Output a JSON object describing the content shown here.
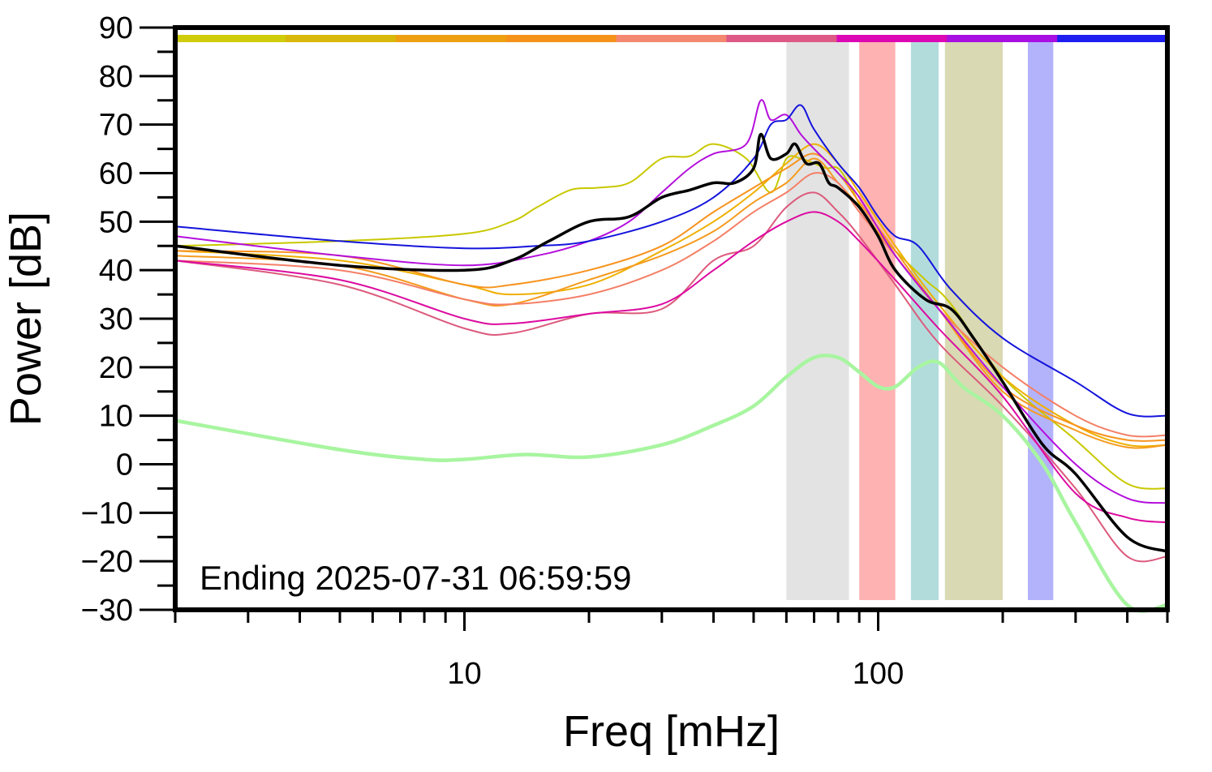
{
  "chart_data": {
    "type": "line",
    "xlabel": "Freq [mHz]",
    "ylabel": "Power [dB]",
    "xscale": "log",
    "xlim": [
      2,
      500
    ],
    "ylim": [
      -30,
      90
    ],
    "xticks": [
      10,
      100
    ],
    "yticks": [
      90,
      80,
      70,
      60,
      50,
      40,
      30,
      20,
      10,
      0,
      -10,
      -20,
      -30
    ],
    "grid": false,
    "annotation": "Ending 2025-07-31 06:59:59",
    "bands": [
      {
        "x": [
          60,
          85
        ],
        "color": "#e3e3e3"
      },
      {
        "x": [
          90,
          110
        ],
        "color": "#ffb2b2"
      },
      {
        "x": [
          120,
          140
        ],
        "color": "#b2dcdc"
      },
      {
        "x": [
          145,
          200
        ],
        "color": "#d9d9b3"
      },
      {
        "x": [
          230,
          265
        ],
        "color": "#b3b3fb"
      }
    ],
    "color_strip": [
      "#cfcc0a",
      "#d8b80a",
      "#eea012",
      "#f5921a",
      "#f48770",
      "#dc5a85",
      "#dc08b4",
      "#a80fe2",
      "#1e1ef0"
    ],
    "series": [
      {
        "color": "#c8c800",
        "width": 2,
        "points": [
          [
            2,
            45
          ],
          [
            5,
            46
          ],
          [
            10,
            47.5
          ],
          [
            13,
            50
          ],
          [
            15,
            53
          ],
          [
            18,
            56.5
          ],
          [
            21,
            57
          ],
          [
            25,
            58
          ],
          [
            30,
            63
          ],
          [
            35,
            63.5
          ],
          [
            40,
            66
          ],
          [
            48,
            63
          ],
          [
            55,
            56
          ],
          [
            60,
            63
          ],
          [
            65,
            63
          ],
          [
            70,
            62
          ],
          [
            75,
            61
          ],
          [
            80,
            61
          ],
          [
            86,
            57
          ],
          [
            95,
            50
          ],
          [
            110,
            44
          ],
          [
            130,
            38
          ],
          [
            150,
            33
          ],
          [
            200,
            18
          ],
          [
            300,
            5
          ],
          [
            400,
            -4
          ],
          [
            500,
            -5
          ]
        ]
      },
      {
        "color": "#eeb000",
        "width": 2,
        "points": [
          [
            2,
            44
          ],
          [
            5,
            42
          ],
          [
            10,
            37
          ],
          [
            13,
            35
          ],
          [
            20,
            37
          ],
          [
            30,
            44
          ],
          [
            40,
            50
          ],
          [
            50,
            56
          ],
          [
            60,
            62
          ],
          [
            70,
            66
          ],
          [
            80,
            62
          ],
          [
            90,
            56
          ],
          [
            110,
            45
          ],
          [
            140,
            33
          ],
          [
            200,
            18
          ],
          [
            300,
            8
          ],
          [
            400,
            4
          ],
          [
            500,
            4
          ]
        ]
      },
      {
        "color": "#f59b1e",
        "width": 2,
        "points": [
          [
            2,
            43
          ],
          [
            5,
            41
          ],
          [
            10,
            34
          ],
          [
            13,
            33
          ],
          [
            20,
            38
          ],
          [
            30,
            43
          ],
          [
            40,
            48
          ],
          [
            50,
            54
          ],
          [
            60,
            58
          ],
          [
            70,
            63
          ],
          [
            80,
            58
          ],
          [
            90,
            53
          ],
          [
            110,
            43
          ],
          [
            140,
            32
          ],
          [
            200,
            15
          ],
          [
            300,
            7
          ],
          [
            400,
            3.5
          ],
          [
            500,
            4
          ]
        ]
      },
      {
        "color": "#f7931e",
        "width": 2,
        "points": [
          [
            2,
            44
          ],
          [
            5,
            43
          ],
          [
            10,
            37
          ],
          [
            13,
            37
          ],
          [
            20,
            40
          ],
          [
            30,
            45
          ],
          [
            40,
            52
          ],
          [
            50,
            57
          ],
          [
            60,
            61
          ],
          [
            70,
            64
          ],
          [
            80,
            60
          ],
          [
            90,
            54
          ],
          [
            110,
            44
          ],
          [
            140,
            32
          ],
          [
            200,
            16
          ],
          [
            300,
            8
          ],
          [
            400,
            5
          ],
          [
            500,
            5
          ]
        ]
      },
      {
        "color": "#f48067",
        "width": 2,
        "points": [
          [
            2,
            42
          ],
          [
            5,
            40
          ],
          [
            10,
            34
          ],
          [
            13,
            33
          ],
          [
            20,
            35
          ],
          [
            30,
            40
          ],
          [
            40,
            46
          ],
          [
            50,
            52
          ],
          [
            60,
            56
          ],
          [
            70,
            60
          ],
          [
            80,
            58
          ],
          [
            90,
            52
          ],
          [
            110,
            43
          ],
          [
            140,
            32
          ],
          [
            200,
            20
          ],
          [
            300,
            10
          ],
          [
            400,
            6
          ],
          [
            500,
            6
          ]
        ]
      },
      {
        "color": "#dc5a7d",
        "width": 2,
        "points": [
          [
            2,
            42
          ],
          [
            5,
            37
          ],
          [
            10,
            28
          ],
          [
            13,
            27
          ],
          [
            20,
            31
          ],
          [
            30,
            32
          ],
          [
            40,
            42
          ],
          [
            50,
            45
          ],
          [
            60,
            53
          ],
          [
            70,
            56
          ],
          [
            80,
            52
          ],
          [
            90,
            47
          ],
          [
            110,
            37
          ],
          [
            140,
            25
          ],
          [
            200,
            12
          ],
          [
            300,
            -5
          ],
          [
            400,
            -19
          ],
          [
            500,
            -19
          ]
        ]
      },
      {
        "color": "#dc0aa0",
        "width": 2,
        "points": [
          [
            2,
            42
          ],
          [
            5,
            38
          ],
          [
            10,
            30
          ],
          [
            13,
            29
          ],
          [
            20,
            31
          ],
          [
            30,
            33
          ],
          [
            40,
            40
          ],
          [
            50,
            46
          ],
          [
            60,
            50
          ],
          [
            70,
            52
          ],
          [
            80,
            50
          ],
          [
            90,
            46
          ],
          [
            110,
            38
          ],
          [
            140,
            28
          ],
          [
            200,
            14
          ],
          [
            300,
            -6
          ],
          [
            400,
            -11
          ],
          [
            500,
            -12
          ]
        ]
      },
      {
        "color": "#b40fdc",
        "width": 2,
        "points": [
          [
            2,
            47
          ],
          [
            5,
            43
          ],
          [
            10,
            41
          ],
          [
            15,
            43
          ],
          [
            20,
            46
          ],
          [
            25,
            50
          ],
          [
            30,
            56
          ],
          [
            35,
            61
          ],
          [
            40,
            64
          ],
          [
            48,
            66
          ],
          [
            52,
            75
          ],
          [
            55,
            71
          ],
          [
            60,
            72
          ],
          [
            65,
            68
          ],
          [
            70,
            65
          ],
          [
            80,
            60
          ],
          [
            90,
            55
          ],
          [
            110,
            43
          ],
          [
            140,
            32
          ],
          [
            200,
            16
          ],
          [
            300,
            0
          ],
          [
            400,
            -7
          ],
          [
            500,
            -8
          ]
        ]
      },
      {
        "color": "#1414dc",
        "width": 2,
        "points": [
          [
            2,
            49
          ],
          [
            5,
            46
          ],
          [
            10,
            44.5
          ],
          [
            15,
            45
          ],
          [
            20,
            46
          ],
          [
            30,
            50
          ],
          [
            40,
            55
          ],
          [
            50,
            63
          ],
          [
            55,
            70
          ],
          [
            60,
            71
          ],
          [
            65,
            74
          ],
          [
            70,
            69
          ],
          [
            80,
            62
          ],
          [
            90,
            57
          ],
          [
            100,
            51
          ],
          [
            110,
            47
          ],
          [
            125,
            45
          ],
          [
            150,
            36
          ],
          [
            200,
            26
          ],
          [
            300,
            17
          ],
          [
            400,
            10.5
          ],
          [
            500,
            10
          ]
        ]
      },
      {
        "color": "#000000",
        "width": 3.5,
        "points": [
          [
            2,
            45
          ],
          [
            5,
            41
          ],
          [
            10,
            40
          ],
          [
            13,
            42
          ],
          [
            16,
            46
          ],
          [
            20,
            50
          ],
          [
            25,
            51
          ],
          [
            30,
            55
          ],
          [
            35,
            56.5
          ],
          [
            40,
            58
          ],
          [
            45,
            58
          ],
          [
            50,
            61
          ],
          [
            52,
            68
          ],
          [
            55,
            63
          ],
          [
            60,
            64
          ],
          [
            63,
            66
          ],
          [
            67,
            62
          ],
          [
            72,
            62
          ],
          [
            76,
            58
          ],
          [
            80,
            57
          ],
          [
            90,
            53
          ],
          [
            100,
            47
          ],
          [
            110,
            40
          ],
          [
            130,
            34
          ],
          [
            150,
            32
          ],
          [
            170,
            26
          ],
          [
            200,
            17
          ],
          [
            250,
            4
          ],
          [
            300,
            -2
          ],
          [
            400,
            -15
          ],
          [
            500,
            -18
          ]
        ]
      },
      {
        "color": "#a8f5a0",
        "width": 4.5,
        "points": [
          [
            2,
            9
          ],
          [
            5,
            3
          ],
          [
            8,
            1
          ],
          [
            10,
            1
          ],
          [
            14,
            2
          ],
          [
            20,
            1.5
          ],
          [
            30,
            4
          ],
          [
            40,
            8
          ],
          [
            50,
            12
          ],
          [
            60,
            18
          ],
          [
            70,
            22
          ],
          [
            80,
            22
          ],
          [
            90,
            19
          ],
          [
            100,
            16
          ],
          [
            110,
            16
          ],
          [
            125,
            20
          ],
          [
            140,
            21
          ],
          [
            160,
            16
          ],
          [
            200,
            10
          ],
          [
            250,
            0
          ],
          [
            300,
            -12
          ],
          [
            400,
            -29
          ],
          [
            500,
            -29
          ]
        ]
      }
    ]
  }
}
